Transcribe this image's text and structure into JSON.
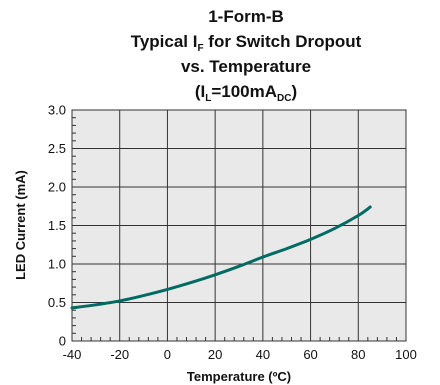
{
  "chart_data": {
    "type": "line",
    "title_lines": [
      "1-Form-B",
      "Typical I_F for Switch Dropout",
      "vs. Temperature",
      "(I_L=100mA_DC)"
    ],
    "title_rich": {
      "line1": "1-Form-B",
      "line2_pre": "Typical I",
      "line2_sub": "F",
      "line2_post": " for Switch Dropout",
      "line3": "vs. Temperature",
      "line4_open": "(I",
      "line4_sub1": "L",
      "line4_mid": "=100mA",
      "line4_sub2": "DC",
      "line4_close": ")"
    },
    "xlabel": "Temperature (ºC)",
    "ylabel": "LED Current (mA)",
    "xlim": [
      -40,
      100
    ],
    "ylim": [
      0,
      3.0
    ],
    "x_ticks": [
      -40,
      -20,
      0,
      20,
      40,
      60,
      80,
      100
    ],
    "y_ticks": [
      0,
      0.5,
      1.0,
      1.5,
      2.0,
      2.5,
      3.0
    ],
    "x_tick_labels": [
      "-40",
      "-20",
      "0",
      "20",
      "40",
      "60",
      "80",
      "100"
    ],
    "y_tick_labels": [
      "0",
      "0.5",
      "1.0",
      "1.5",
      "2.0",
      "2.5",
      "3.0"
    ],
    "grid": true,
    "background_color": "#e9e9e9",
    "line_color": "#006b63",
    "series": [
      {
        "x": [
          -40,
          -30,
          -20,
          -10,
          0,
          10,
          20,
          30,
          40,
          50,
          60,
          70,
          80,
          85
        ],
        "y": [
          0.43,
          0.47,
          0.52,
          0.59,
          0.67,
          0.76,
          0.86,
          0.97,
          1.09,
          1.2,
          1.32,
          1.46,
          1.63,
          1.74
        ]
      }
    ]
  }
}
